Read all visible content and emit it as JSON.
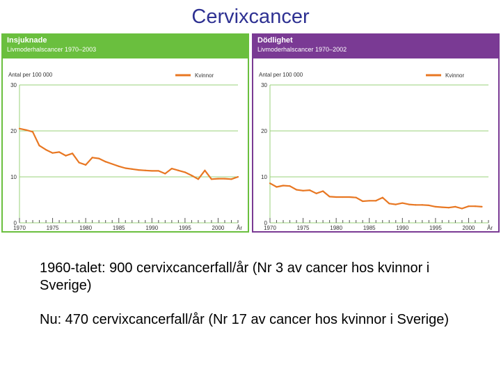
{
  "slide": {
    "title": "Cervixcancer",
    "line1": "1960-talet: 900 cervixcancerfall/år (Nr 3 av cancer hos kvinnor i Sverige)",
    "line2": "Nu: 470 cervixcancerfall/år (Nr 17 av cancer hos kvinnor i Sverige)"
  },
  "colors": {
    "left_header": "#6abf3e",
    "right_header": "#7a3a94",
    "line": "#e87722",
    "grid": "#9ad07a"
  },
  "chart_data": [
    {
      "type": "line",
      "title": "Insjuknade",
      "subtitle": "Livmoderhalscancer 1970–2003",
      "ylabel": "Antal per 100 000",
      "xlabel": "År",
      "legend": "Kvinnor",
      "ylim": [
        0,
        30
      ],
      "yticks": [
        "0",
        "10",
        "20",
        "30"
      ],
      "xticks": [
        "1970",
        "1975",
        "1980",
        "1985",
        "1990",
        "1995",
        "2000"
      ],
      "x": [
        1970,
        1971,
        1972,
        1973,
        1974,
        1975,
        1976,
        1977,
        1978,
        1979,
        1980,
        1981,
        1982,
        1983,
        1984,
        1985,
        1986,
        1987,
        1988,
        1989,
        1990,
        1991,
        1992,
        1993,
        1994,
        1995,
        1996,
        1997,
        1998,
        1999,
        2000,
        2001,
        2002,
        2003
      ],
      "values": [
        20.5,
        20.2,
        19.8,
        16.8,
        15.9,
        15.2,
        15.4,
        14.6,
        15.1,
        13.1,
        12.6,
        14.2,
        14.0,
        13.3,
        12.8,
        12.3,
        11.9,
        11.7,
        11.5,
        11.4,
        11.3,
        11.3,
        10.7,
        11.8,
        11.4,
        11.0,
        10.3,
        9.5,
        11.4,
        9.5,
        9.6,
        9.6,
        9.5,
        10.0
      ]
    },
    {
      "type": "line",
      "title": "Dödlighet",
      "subtitle": "Livmoderhalscancer 1970–2002",
      "ylabel": "Antal per 100 000",
      "xlabel": "År",
      "legend": "Kvinnor",
      "ylim": [
        0,
        30
      ],
      "yticks": [
        "0",
        "10",
        "20",
        "30"
      ],
      "xticks": [
        "1970",
        "1975",
        "1980",
        "1985",
        "1990",
        "1995",
        "2000"
      ],
      "x": [
        1970,
        1971,
        1972,
        1973,
        1974,
        1975,
        1976,
        1977,
        1978,
        1979,
        1980,
        1981,
        1982,
        1983,
        1984,
        1985,
        1986,
        1987,
        1988,
        1989,
        1990,
        1991,
        1992,
        1993,
        1994,
        1995,
        1996,
        1997,
        1998,
        1999,
        2000,
        2001,
        2002
      ],
      "values": [
        8.6,
        7.8,
        8.1,
        8.0,
        7.2,
        7.0,
        7.1,
        6.4,
        6.9,
        5.7,
        5.6,
        5.6,
        5.6,
        5.5,
        4.7,
        4.8,
        4.8,
        5.5,
        4.2,
        4.0,
        4.3,
        4.0,
        3.9,
        3.9,
        3.8,
        3.5,
        3.4,
        3.3,
        3.5,
        3.1,
        3.6,
        3.6,
        3.5
      ]
    }
  ]
}
